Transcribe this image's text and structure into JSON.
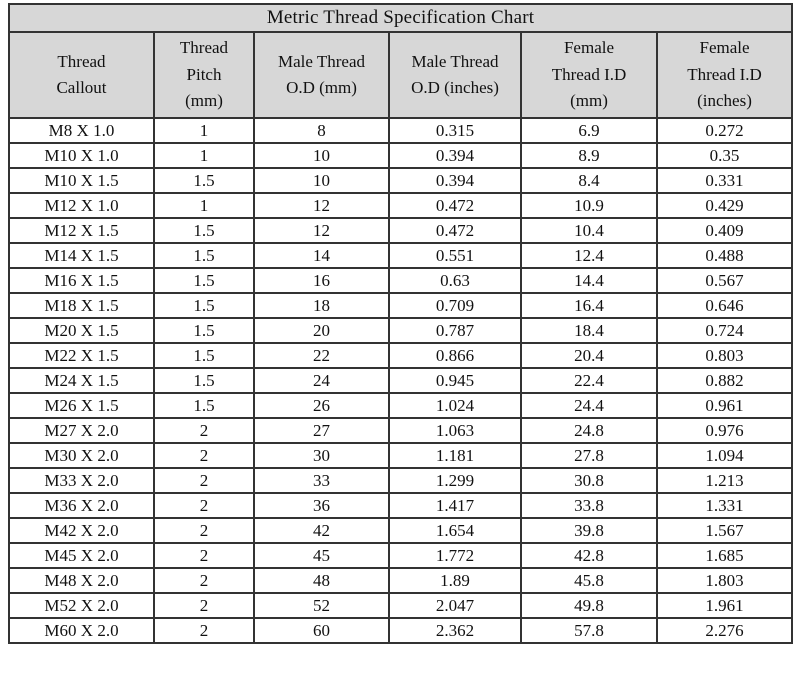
{
  "title": "Metric Thread Specification Chart",
  "colors": {
    "header_background": "#d7d7d7",
    "grid_border": "#333333",
    "cell_background": "#ffffff",
    "text": "#111111"
  },
  "table": {
    "headers": [
      "Thread\nCallout",
      "Thread\nPitch\n(mm)",
      "Male Thread\nO.D (mm)",
      "Male Thread\nO.D (inches)",
      "Female\nThread I.D\n(mm)",
      "Female\nThread I.D\n(inches)"
    ],
    "rows": [
      [
        "M8 X 1.0",
        "1",
        "8",
        "0.315",
        "6.9",
        "0.272"
      ],
      [
        "M10 X 1.0",
        "1",
        "10",
        "0.394",
        "8.9",
        "0.35"
      ],
      [
        "M10 X 1.5",
        "1.5",
        "10",
        "0.394",
        "8.4",
        "0.331"
      ],
      [
        "M12 X 1.0",
        "1",
        "12",
        "0.472",
        "10.9",
        "0.429"
      ],
      [
        "M12 X 1.5",
        "1.5",
        "12",
        "0.472",
        "10.4",
        "0.409"
      ],
      [
        "M14 X 1.5",
        "1.5",
        "14",
        "0.551",
        "12.4",
        "0.488"
      ],
      [
        "M16 X 1.5",
        "1.5",
        "16",
        "0.63",
        "14.4",
        "0.567"
      ],
      [
        "M18 X 1.5",
        "1.5",
        "18",
        "0.709",
        "16.4",
        "0.646"
      ],
      [
        "M20 X 1.5",
        "1.5",
        "20",
        "0.787",
        "18.4",
        "0.724"
      ],
      [
        "M22 X 1.5",
        "1.5",
        "22",
        "0.866",
        "20.4",
        "0.803"
      ],
      [
        "M24 X 1.5",
        "1.5",
        "24",
        "0.945",
        "22.4",
        "0.882"
      ],
      [
        "M26 X 1.5",
        "1.5",
        "26",
        "1.024",
        "24.4",
        "0.961"
      ],
      [
        "M27 X 2.0",
        "2",
        "27",
        "1.063",
        "24.8",
        "0.976"
      ],
      [
        "M30 X 2.0",
        "2",
        "30",
        "1.181",
        "27.8",
        "1.094"
      ],
      [
        "M33 X 2.0",
        "2",
        "33",
        "1.299",
        "30.8",
        "1.213"
      ],
      [
        "M36 X 2.0",
        "2",
        "36",
        "1.417",
        "33.8",
        "1.331"
      ],
      [
        "M42 X 2.0",
        "2",
        "42",
        "1.654",
        "39.8",
        "1.567"
      ],
      [
        "M45 X 2.0",
        "2",
        "45",
        "1.772",
        "42.8",
        "1.685"
      ],
      [
        "M48 X 2.0",
        "2",
        "48",
        "1.89",
        "45.8",
        "1.803"
      ],
      [
        "M52 X 2.0",
        "2",
        "52",
        "2.047",
        "49.8",
        "1.961"
      ],
      [
        "M60 X 2.0",
        "2",
        "60",
        "2.362",
        "57.8",
        "2.276"
      ]
    ]
  }
}
